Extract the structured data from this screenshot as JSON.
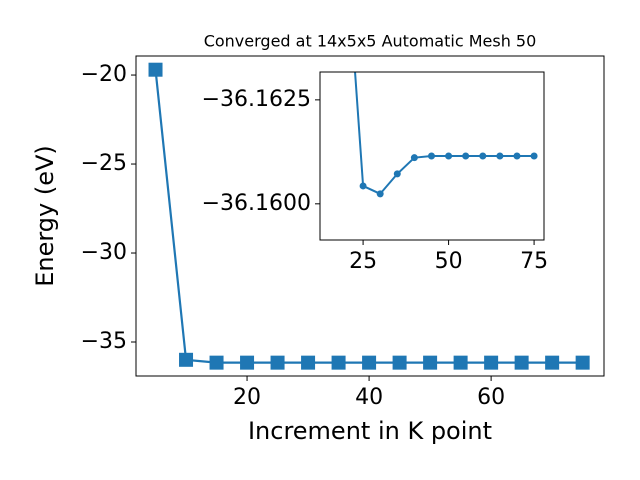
{
  "chart_data": [
    {
      "type": "line",
      "title": "Converged at 14x5x5 Automatic Mesh 50",
      "xlabel": "Increment in K point",
      "ylabel": "Energy (eV)",
      "x": [
        5,
        10,
        15,
        20,
        25,
        30,
        35,
        40,
        45,
        50,
        55,
        60,
        65,
        70,
        75
      ],
      "series": [
        {
          "name": "Energy",
          "color": "#1f77b4",
          "marker": "square",
          "values": [
            -19.7,
            -36.0,
            -36.16,
            -36.16,
            -36.16,
            -36.16,
            -36.16,
            -36.16,
            -36.16,
            -36.16,
            -36.16,
            -36.16,
            -36.16,
            -36.16,
            -36.16
          ]
        }
      ],
      "xlim": [
        1.8,
        78.5
      ],
      "ylim": [
        -36.91,
        -18.93
      ],
      "xticks": [
        20,
        40,
        60
      ],
      "yticks": [
        {
          "value": -20,
          "label": "−20"
        },
        {
          "value": -25,
          "label": "−25"
        },
        {
          "value": -30,
          "label": "−30"
        },
        {
          "value": -35,
          "label": "−35"
        }
      ]
    },
    {
      "type": "line",
      "x": [
        20,
        25,
        30,
        35,
        40,
        45,
        50,
        55,
        60,
        65,
        70,
        75
      ],
      "series": [
        {
          "name": "Energy",
          "color": "#1f77b4",
          "marker": "circle",
          "values": [
            -36.16625,
            -36.16043,
            -36.16024,
            -36.16072,
            -36.16111,
            -36.16115,
            -36.16115,
            -36.16115,
            -36.16115,
            -36.16115,
            -36.16115,
            -36.16115
          ]
        }
      ],
      "xlim": [
        12.4,
        77.9
      ],
      "ylim": [
        -36.15913,
        -36.16317
      ],
      "xticks": [
        25,
        50,
        75
      ],
      "yticks": [
        {
          "value": -36.1625,
          "label": "−36.1625"
        },
        {
          "value": -36.16,
          "label": "−36.1600"
        }
      ]
    }
  ]
}
